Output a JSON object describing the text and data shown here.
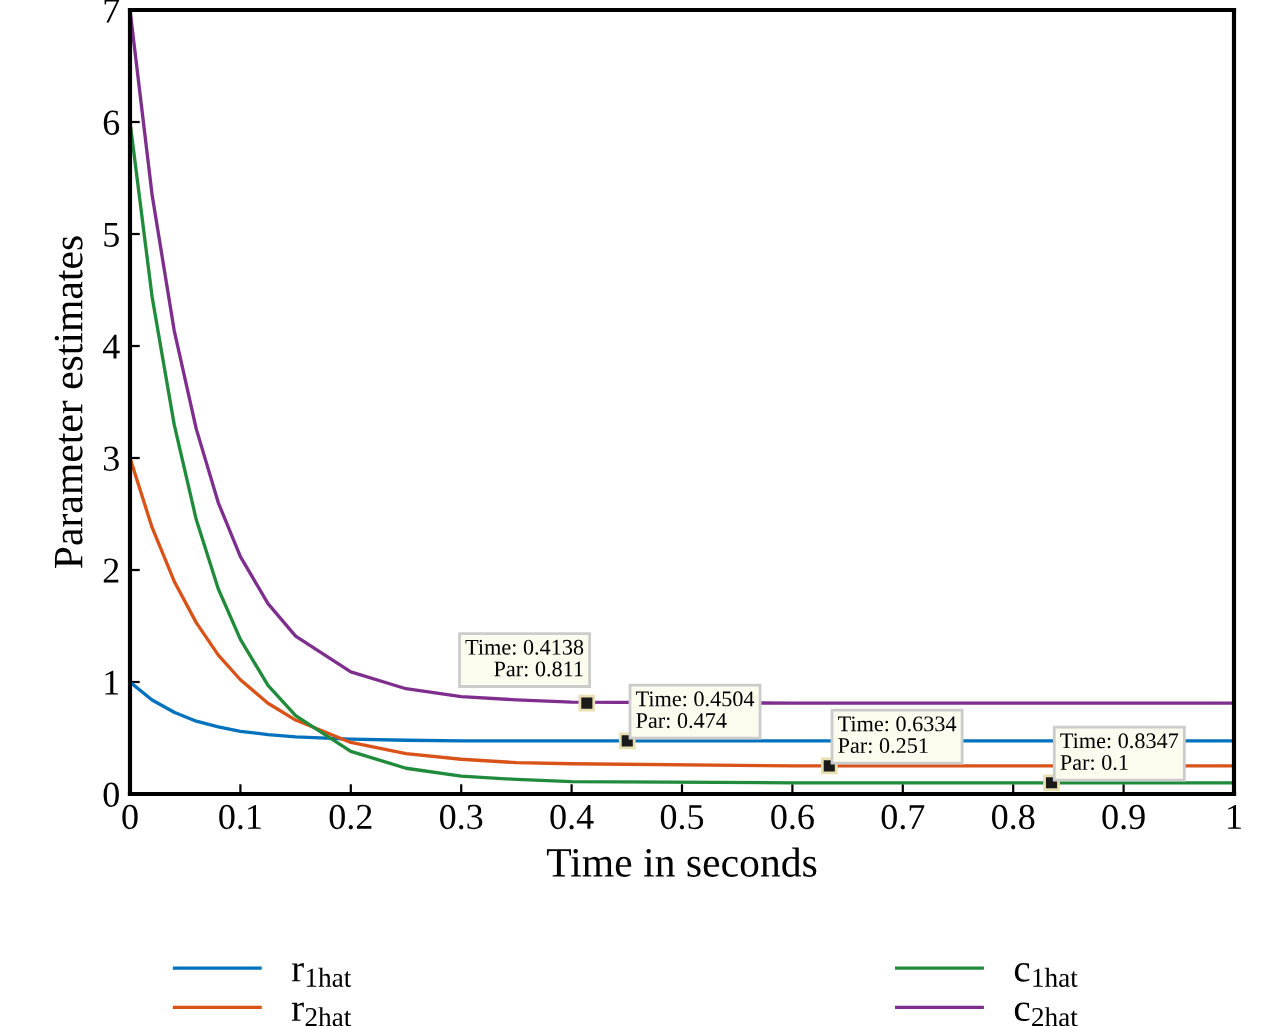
{
  "chart_data": {
    "type": "line",
    "xlabel": "Time in seconds",
    "ylabel": "Parameter estimates",
    "x": [
      0,
      0.02,
      0.04,
      0.06,
      0.08,
      0.1,
      0.125,
      0.15,
      0.2,
      0.25,
      0.3,
      0.35,
      0.4,
      0.6,
      1
    ],
    "series": [
      {
        "name": "r$_{1hat}$",
        "color": "#0072bd",
        "values": [
          1,
          0.84,
          0.73,
          0.65,
          0.6,
          0.56,
          0.53,
          0.51,
          0.49,
          0.48,
          0.474,
          0.474,
          0.474,
          0.474,
          0.474
        ]
      },
      {
        "name": "r$_{2hat}$",
        "color": "#d95319",
        "values": [
          3,
          2.38,
          1.9,
          1.53,
          1.24,
          1.02,
          0.81,
          0.66,
          0.46,
          0.36,
          0.31,
          0.28,
          0.27,
          0.251,
          0.251
        ]
      },
      {
        "name": "c$_{1hat}$",
        "color": "#218b3c",
        "values": [
          6,
          4.44,
          3.3,
          2.45,
          1.83,
          1.38,
          0.97,
          0.7,
          0.38,
          0.23,
          0.16,
          0.13,
          0.11,
          0.1,
          0.1
        ]
      },
      {
        "name": "c$_{2hat}$",
        "color": "#7e2f8e",
        "values": [
          7,
          5.35,
          4.14,
          3.26,
          2.6,
          2.12,
          1.7,
          1.41,
          1.09,
          0.94,
          0.87,
          0.84,
          0.82,
          0.811,
          0.811
        ]
      }
    ],
    "annotations": [
      {
        "text": "Time: 0.4138\nPar: 0.811",
        "x": 0.4138,
        "y": 0.811
      },
      {
        "text": "Time: 0.4504\nPar: 0.474",
        "x": 0.4504,
        "y": 0.474
      },
      {
        "text": "Time: 0.6334\nPar: 0.251",
        "x": 0.6334,
        "y": 0.251
      },
      {
        "text": "Time: 0.8347\nPar: 0.1",
        "x": 0.8347,
        "y": 0.1
      }
    ],
    "xlim": [
      0,
      1
    ],
    "xticks": [
      0,
      0.1,
      0.2,
      0.3,
      0.4,
      0.5,
      0.6,
      0.7,
      0.8,
      0.9,
      1
    ],
    "ylim": [
      0,
      7
    ],
    "yticks": [
      0,
      1,
      2,
      3,
      4,
      5,
      6,
      7
    ],
    "grid": false,
    "legend": "bottom",
    "line_style": "solid",
    "marker": "none"
  }
}
